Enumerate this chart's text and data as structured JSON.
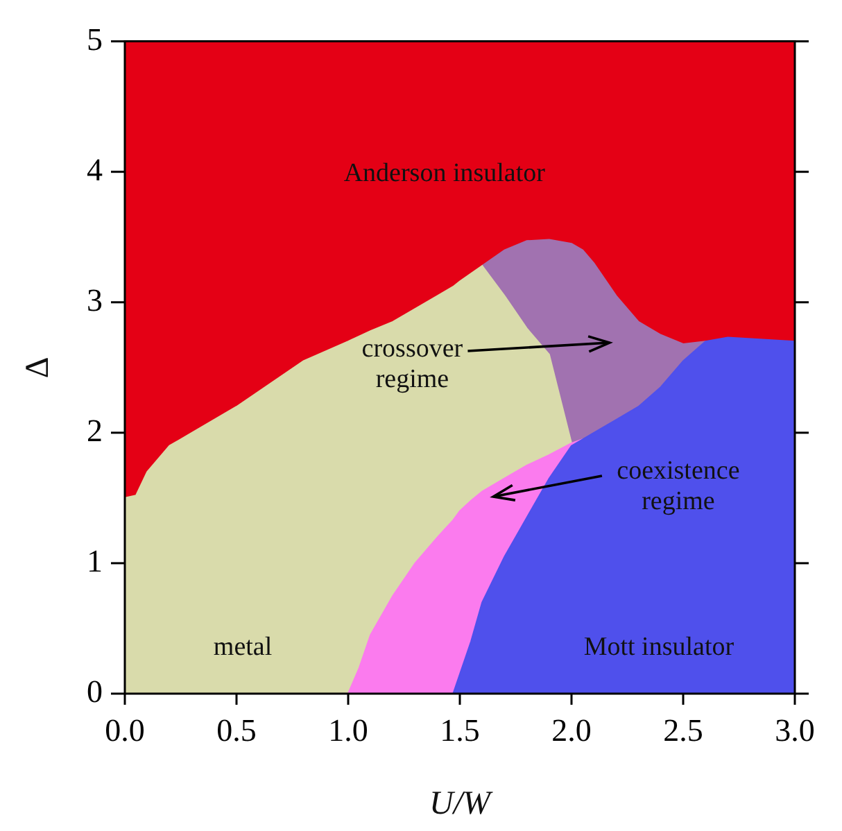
{
  "chart_data": {
    "type": "area",
    "xlabel": "U/W",
    "ylabel": "Δ",
    "legend": false,
    "xlim": [
      0,
      3
    ],
    "ylim": [
      0,
      5
    ],
    "xticks": [
      {
        "value": 0,
        "label": "0.0"
      },
      {
        "value": 0.5,
        "label": "0.5"
      },
      {
        "value": 1,
        "label": "1.0"
      },
      {
        "value": 1.5,
        "label": "1.5"
      },
      {
        "value": 2,
        "label": "2.0"
      },
      {
        "value": 2.5,
        "label": "2.5"
      },
      {
        "value": 3,
        "label": "3.0"
      }
    ],
    "yticks": [
      0,
      1,
      2,
      3,
      4,
      5
    ],
    "x": [
      0,
      0.05,
      0.1,
      0.2,
      0.3,
      0.5,
      0.8,
      1.0,
      1.05,
      1.1,
      1.2,
      1.3,
      1.4,
      1.47,
      1.5,
      1.55,
      1.6,
      1.7,
      1.8,
      1.9,
      2.0,
      2.05,
      2.1,
      2.2,
      2.3,
      2.4,
      2.5,
      2.6,
      2.7,
      3.0
    ],
    "series": [
      {
        "color": "#4f50ec",
        "values": [
          null,
          null,
          null,
          null,
          null,
          null,
          null,
          null,
          null,
          null,
          null,
          null,
          null,
          0,
          0.15,
          0.4,
          0.7,
          1.05,
          1.35,
          1.65,
          1.9,
          1.95,
          2.0,
          2.1,
          2.2,
          2.35,
          2.55,
          2.7,
          2.73,
          2.7
        ]
      },
      {
        "color": "#fb7bee",
        "values": [
          null,
          null,
          null,
          null,
          null,
          null,
          null,
          0,
          0.2,
          0.45,
          0.75,
          1.0,
          1.2,
          1.33,
          1.4,
          1.48,
          1.55,
          1.65,
          1.75,
          1.83,
          1.92,
          1.95,
          null,
          null,
          null,
          null,
          null,
          null,
          null,
          null
        ]
      },
      {
        "color": "#d9dbab",
        "values": [
          1.5,
          1.52,
          1.7,
          1.9,
          2.0,
          2.2,
          2.55,
          2.7,
          2.74,
          2.78,
          2.85,
          2.95,
          3.05,
          3.12,
          3.16,
          3.22,
          3.28,
          3.05,
          2.8,
          2.6,
          1.92,
          null,
          null,
          null,
          null,
          null,
          null,
          null,
          null,
          null
        ]
      },
      {
        "color": "#a172b0",
        "values": [
          null,
          null,
          null,
          null,
          null,
          null,
          null,
          null,
          null,
          null,
          null,
          null,
          null,
          null,
          null,
          null,
          3.28,
          3.4,
          3.47,
          3.48,
          3.45,
          3.4,
          3.3,
          3.05,
          2.85,
          2.75,
          2.68,
          2.7,
          null,
          null
        ]
      }
    ],
    "bands": [
      {
        "axis": "y",
        "from": 0,
        "to": 5,
        "color": "#e40015"
      }
    ],
    "annotations": [
      "Anderson insulator",
      "crossover\nregime",
      "coexistence\nregime",
      "metal",
      "Mott insulator"
    ]
  }
}
